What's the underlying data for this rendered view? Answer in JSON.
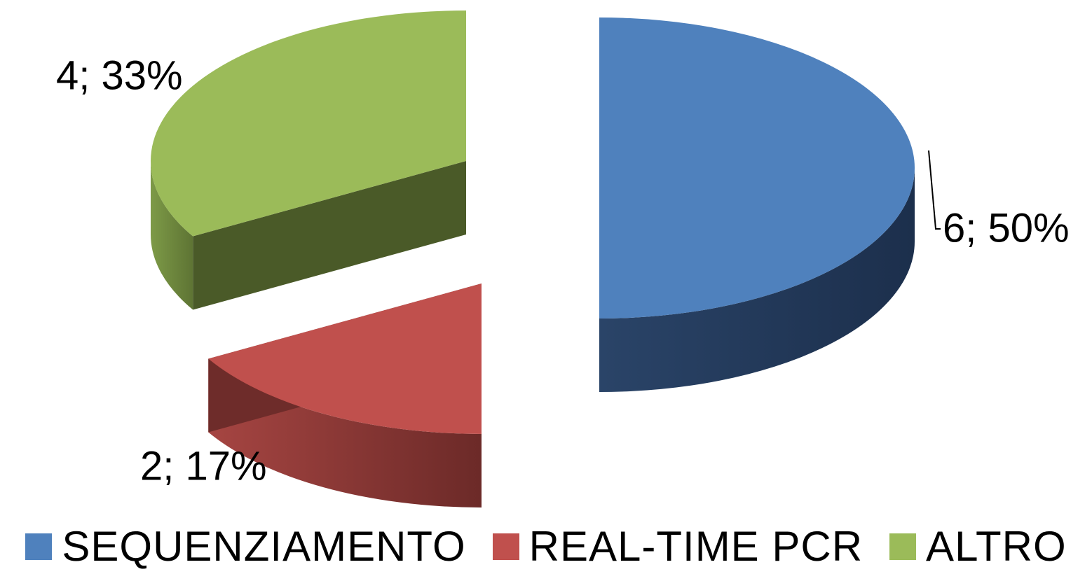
{
  "chart_data": {
    "type": "pie",
    "style": "3d-exploded",
    "categories": [
      "SEQUENZIAMENTO",
      "REAL-TIME PCR",
      "ALTRO"
    ],
    "values": [
      6,
      2,
      4
    ],
    "percentages": [
      50,
      17,
      33
    ],
    "data_labels": [
      "6; 50%",
      "2; 17%",
      "4; 33%"
    ],
    "colors": [
      "#4F81BD",
      "#C0504D",
      "#9BBB59"
    ],
    "legend_position": "bottom"
  },
  "legend": {
    "items": [
      {
        "label": "SEQUENZIAMENTO",
        "color": "#4F81BD"
      },
      {
        "label": "REAL-TIME PCR",
        "color": "#C0504D"
      },
      {
        "label": "ALTRO",
        "color": "#9BBB59"
      }
    ]
  }
}
